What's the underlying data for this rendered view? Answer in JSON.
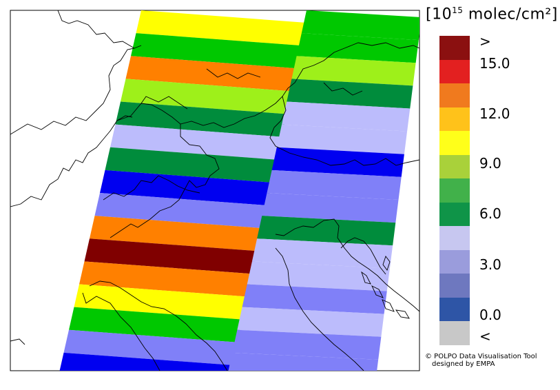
{
  "colorbar": {
    "unit_base": "[10",
    "unit_exp": "15",
    "unit_rest": " molec/cm²]",
    "bins": [
      {
        "level": ">",
        "color": "#8b1010"
      },
      {
        "level": "15.0-",
        "color": "#e32020"
      },
      {
        "level": "13.5-15.0",
        "color": "#f07a1e"
      },
      {
        "level": "12.0-13.5",
        "color": "#ffc21a"
      },
      {
        "level": "10.5-12.0",
        "color": "#ffff1a"
      },
      {
        "level": "9.0-10.5",
        "color": "#a9d13a"
      },
      {
        "level": "7.5-9.0",
        "color": "#41b14a"
      },
      {
        "level": "6.0-7.5",
        "color": "#0f9448"
      },
      {
        "level": "4.5-6.0",
        "color": "#c7c7f0"
      },
      {
        "level": "3.0-4.5",
        "color": "#9a9cdc"
      },
      {
        "level": "1.5-3.0",
        "color": "#6e78bf"
      },
      {
        "level": "0.0-1.5",
        "color": "#2e55a6"
      },
      {
        "level": "<",
        "color": "#c8c8c8"
      }
    ],
    "labels": [
      ">",
      "15.0",
      "12.0",
      "9.0",
      "6.0",
      "3.0",
      "0.0",
      "<"
    ]
  },
  "credit": {
    "line1": "© POLPO Data Visualisation Tool",
    "line2": "designed by EMPA"
  },
  "map_colors": {
    "dark_red": "#800000",
    "orange": "#ff8000",
    "yellow": "#ffff00",
    "yellow_green": "#9ef01a",
    "green": "#00c800",
    "dark_green": "#008c3c",
    "lavender": "#bcbcfc",
    "periwinkle": "#8080f8",
    "blue": "#0000f0"
  },
  "swath": {
    "left_column": [
      "yellow",
      "green",
      "orange",
      "yellow_green",
      "dark_green",
      "lavender",
      "dark_green",
      "blue",
      "periwinkle",
      "orange",
      "dark_red",
      "orange",
      "yellow",
      "green",
      "periwinkle",
      "blue"
    ],
    "right_column": [
      "green",
      "green",
      "yellow_green",
      "dark_green",
      "lavender",
      "lavender",
      "blue",
      "periwinkle",
      "periwinkle",
      "dark_green",
      "lavender",
      "lavender",
      "periwinkle",
      "lavender",
      "periwinkle",
      "periwinkle"
    ]
  }
}
